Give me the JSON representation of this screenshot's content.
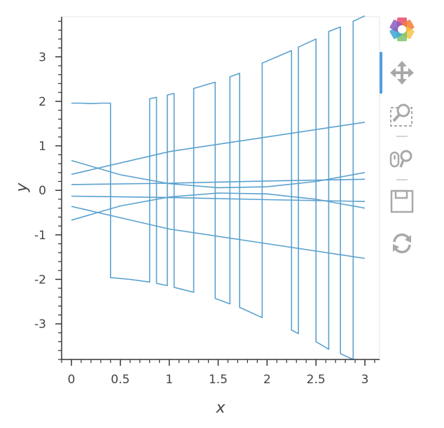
{
  "chart_data": {
    "type": "line",
    "title": "",
    "xlabel": "x",
    "ylabel": "y",
    "xlim": [
      -0.1,
      3.15
    ],
    "ylim": [
      -3.8,
      3.9
    ],
    "x_ticks": [
      0,
      0.5,
      1,
      1.5,
      2,
      2.5,
      3
    ],
    "x_tick_labels": [
      "0",
      "0.5",
      "1",
      "1.5",
      "2",
      "2.5",
      "3"
    ],
    "y_ticks": [
      -3,
      -2,
      -1,
      0,
      1,
      2,
      3
    ],
    "y_tick_labels": [
      "-3",
      "-2",
      "-1",
      "0",
      "1",
      "2",
      "3"
    ],
    "grid": false,
    "line_color": "#5aa1cf",
    "series": [
      {
        "points": [
          [
            0,
            1.96
          ],
          [
            0.1,
            1.96
          ],
          [
            0.2,
            1.95
          ],
          [
            0.3,
            1.96
          ],
          [
            0.4,
            1.96
          ],
          [
            0.4,
            -1.96
          ],
          [
            0.6,
            -2.0
          ],
          [
            0.8,
            -2.06
          ],
          [
            0.8,
            2.06
          ],
          [
            0.87,
            2.09
          ],
          [
            0.87,
            -2.09
          ],
          [
            0.98,
            -2.14
          ],
          [
            0.98,
            2.14
          ],
          [
            1.05,
            2.18
          ],
          [
            1.05,
            -2.18
          ],
          [
            1.25,
            -2.29
          ],
          [
            1.25,
            2.29
          ],
          [
            1.47,
            2.43
          ],
          [
            1.47,
            -2.43
          ],
          [
            1.62,
            -2.55
          ],
          [
            1.62,
            2.55
          ],
          [
            1.72,
            2.63
          ],
          [
            1.72,
            -2.63
          ],
          [
            1.95,
            -2.86
          ],
          [
            1.95,
            2.86
          ],
          [
            2.25,
            3.14
          ],
          [
            2.25,
            -3.14
          ],
          [
            2.32,
            -3.22
          ],
          [
            2.32,
            3.22
          ],
          [
            2.5,
            3.4
          ],
          [
            2.5,
            -3.4
          ],
          [
            2.63,
            -3.57
          ],
          [
            2.63,
            3.57
          ],
          [
            2.75,
            3.67
          ],
          [
            2.75,
            -3.67
          ],
          [
            2.88,
            -3.8
          ],
          [
            2.88,
            3.8
          ],
          [
            3.0,
            3.92
          ]
        ]
      },
      {
        "points": [
          [
            0,
            0.36
          ],
          [
            1,
            0.87
          ],
          [
            2,
            1.2
          ],
          [
            3,
            1.53
          ]
        ]
      },
      {
        "points": [
          [
            0,
            -0.36
          ],
          [
            1,
            -0.87
          ],
          [
            2,
            -1.2
          ],
          [
            3,
            -1.53
          ]
        ]
      },
      {
        "points": [
          [
            0,
            0.67
          ],
          [
            0.5,
            0.35
          ],
          [
            1,
            0.15
          ],
          [
            1.5,
            0.06
          ],
          [
            2,
            0.08
          ],
          [
            2.5,
            0.2
          ],
          [
            3,
            0.4
          ]
        ]
      },
      {
        "points": [
          [
            0,
            -0.67
          ],
          [
            0.5,
            -0.35
          ],
          [
            1,
            -0.15
          ],
          [
            1.5,
            -0.06
          ],
          [
            2,
            -0.08
          ],
          [
            2.5,
            -0.2
          ],
          [
            3,
            -0.4
          ]
        ]
      },
      {
        "points": [
          [
            0,
            0.13
          ],
          [
            1,
            0.16
          ],
          [
            2,
            0.21
          ],
          [
            3,
            0.25
          ]
        ]
      },
      {
        "points": [
          [
            0,
            -0.13
          ],
          [
            1,
            -0.16
          ],
          [
            2,
            -0.21
          ],
          [
            3,
            -0.25
          ]
        ]
      }
    ]
  },
  "toolbar": {
    "logo_colors": [
      "#e94b6a",
      "#f47c35",
      "#f6c443",
      "#7cc36b",
      "#3aa6d6",
      "#8b5bbd"
    ],
    "tools": [
      {
        "name": "pan-tool",
        "icon": "move-arrows-icon",
        "active": true
      },
      {
        "name": "box-zoom-tool",
        "icon": "box-zoom-icon",
        "active": false
      },
      {
        "name": "wheel-zoom-tool",
        "icon": "wheel-zoom-icon",
        "active": false
      },
      {
        "name": "save-tool",
        "icon": "save-icon",
        "active": false
      },
      {
        "name": "reset-tool",
        "icon": "reset-icon",
        "active": false
      }
    ]
  }
}
